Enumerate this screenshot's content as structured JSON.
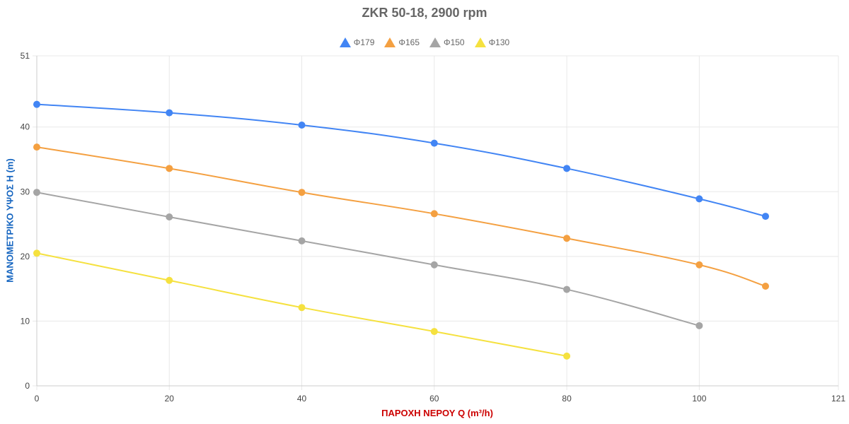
{
  "chart_data": {
    "type": "line",
    "title": "ZKR 50-18, 2900 rpm",
    "xlabel": "ΠΑΡΟΧΗ ΝΕΡΟΥ Q (m³/h)",
    "ylabel": "ΜΑΝΟΜΕΤΡΙΚΟ ΥΨΟΣ Η (m)",
    "xlim": [
      0,
      121
    ],
    "ylim": [
      0,
      51
    ],
    "xticks": [
      0,
      20,
      40,
      60,
      80,
      100,
      121
    ],
    "yticks": [
      0,
      10,
      20,
      30,
      40,
      51
    ],
    "grid": true,
    "legend_position": "top",
    "series": [
      {
        "name": "Φ179",
        "color": "#4285f4",
        "x": [
          0,
          20,
          40,
          60,
          80,
          100,
          110
        ],
        "values": [
          43.5,
          42.2,
          40.3,
          37.5,
          33.6,
          28.9,
          26.2
        ]
      },
      {
        "name": "Φ165",
        "color": "#f4a041",
        "x": [
          0,
          20,
          40,
          60,
          80,
          100,
          110
        ],
        "values": [
          36.9,
          33.6,
          29.9,
          26.6,
          22.8,
          18.7,
          15.4
        ]
      },
      {
        "name": "Φ150",
        "color": "#a5a5a5",
        "x": [
          0,
          20,
          40,
          60,
          80,
          100
        ],
        "values": [
          29.9,
          26.1,
          22.4,
          18.7,
          14.9,
          9.3
        ]
      },
      {
        "name": "Φ130",
        "color": "#f5e13f",
        "x": [
          0,
          20,
          40,
          60,
          80
        ],
        "values": [
          20.5,
          16.3,
          12.1,
          8.4,
          4.6
        ]
      }
    ]
  }
}
